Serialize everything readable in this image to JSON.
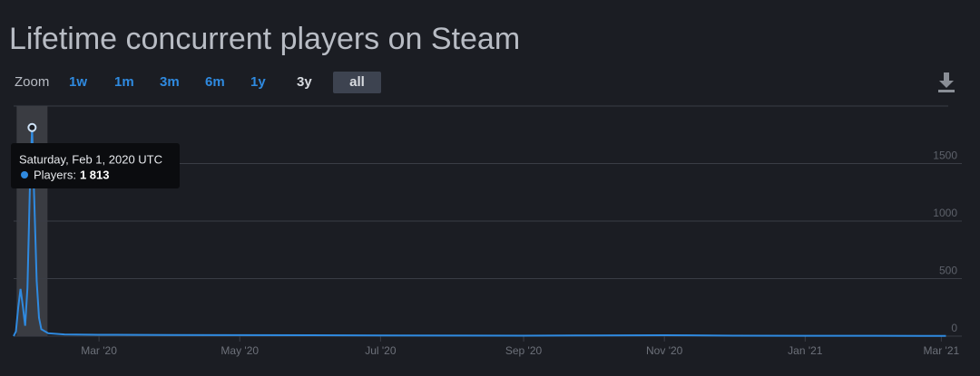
{
  "chart_data": {
    "type": "line",
    "title": "Lifetime concurrent players on Steam",
    "zoom": {
      "label": "Zoom",
      "options": [
        "1w",
        "1m",
        "3m",
        "6m",
        "1y",
        "3y",
        "all"
      ],
      "selected": "all"
    },
    "color": "#2f8ae0",
    "x": [
      "2020-01-24",
      "2020-01-25",
      "2020-01-26",
      "2020-01-27",
      "2020-01-28",
      "2020-01-29",
      "2020-01-30",
      "2020-01-31",
      "2020-02-01",
      "2020-02-02",
      "2020-02-03",
      "2020-02-04",
      "2020-02-05",
      "2020-02-08",
      "2020-02-15",
      "2020-03-01",
      "2020-04-01",
      "2020-05-01",
      "2020-06-01",
      "2020-07-01",
      "2020-08-01",
      "2020-09-01",
      "2020-10-01",
      "2020-11-01",
      "2020-12-01",
      "2021-01-01",
      "2021-02-01",
      "2021-03-03"
    ],
    "values": [
      0,
      40,
      250,
      410,
      260,
      90,
      420,
      1250,
      1813,
      1150,
      480,
      160,
      60,
      25,
      15,
      12,
      10,
      9,
      8,
      6,
      5,
      4,
      6,
      8,
      4,
      3,
      3,
      2
    ],
    "xlim": [
      "2020-01-24",
      "2021-03-04"
    ],
    "xticks": [
      {
        "value": "2020-03-01",
        "label": "Mar '20"
      },
      {
        "value": "2020-05-01",
        "label": "May '20"
      },
      {
        "value": "2020-07-01",
        "label": "Jul '20"
      },
      {
        "value": "2020-09-01",
        "label": "Sep '20"
      },
      {
        "value": "2020-11-01",
        "label": "Nov '20"
      },
      {
        "value": "2021-01-01",
        "label": "Jan '21"
      },
      {
        "value": "2021-03-01",
        "label": "Mar '21"
      }
    ],
    "ylim": [
      0,
      2000
    ],
    "yticks": [
      0,
      500,
      1000,
      1500
    ],
    "grid": true,
    "tooltip": {
      "title": "Saturday, Feb 1, 2020 UTC",
      "series_label": "Players:",
      "value": 1813,
      "value_label": "1 813"
    }
  }
}
